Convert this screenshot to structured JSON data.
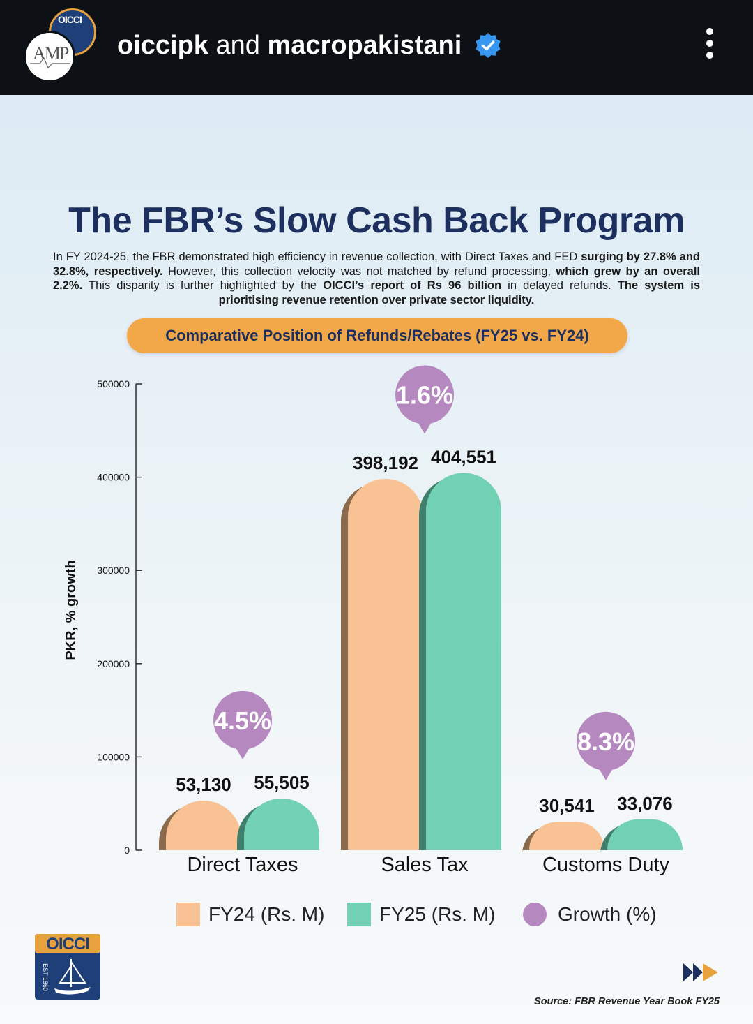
{
  "header": {
    "account_primary": "oiccipk",
    "account_joiner": "and",
    "account_secondary": "macropakistani",
    "avatar_back_text": "OICCI",
    "avatar_front_text": "AMP"
  },
  "infographic": {
    "title": "The FBR’s Slow Cash Back Program",
    "intro": [
      {
        "text": "In FY 2024-25, the FBR demonstrated high efficiency in revenue collection, with Direct Taxes and FED ",
        "bold": false
      },
      {
        "text": "surging by 27.8% and 32.8%, respectively.",
        "bold": true
      },
      {
        "text": " However, this collection velocity was not matched by refund processing, ",
        "bold": false
      },
      {
        "text": "which grew by an overall 2.2%.",
        "bold": true
      },
      {
        "text": " This disparity is further highlighted by the ",
        "bold": false
      },
      {
        "text": "OICCI’s report of Rs 96 billion",
        "bold": true
      },
      {
        "text": " in delayed refunds. ",
        "bold": false
      },
      {
        "text": "The system is prioritising revenue retention over private sector liquidity.",
        "bold": true
      }
    ],
    "subtitle": "Comparative Position of Refunds/Rebates (FY25 vs. FY24)",
    "source": "Source: FBR Revenue Year Book FY25",
    "logo_text": "OICCI",
    "logo_est": "EST 1860"
  },
  "colors": {
    "fy24": "#f8c294",
    "fy24_dark": "#8a6a4c",
    "fy25": "#72d1b3",
    "fy25_dark": "#3f7f6c",
    "growth": "#b688c0",
    "title": "#1d2f5e",
    "pill": "#f2a848"
  },
  "chart_data": {
    "type": "bar",
    "title": "Comparative Position of Refunds/Rebates (FY25 vs. FY24)",
    "ylabel": "PKR, % growth",
    "xlabel": "",
    "ylim": [
      0,
      500000
    ],
    "yticks": [
      0,
      100000,
      200000,
      300000,
      400000,
      500000
    ],
    "categories": [
      "Direct Taxes",
      "Sales Tax",
      "Customs Duty"
    ],
    "series": [
      {
        "name": "FY24 (Rs. M)",
        "values": [
          53130,
          398192,
          30541
        ],
        "labels": [
          "53,130",
          "398,192",
          "30,541"
        ]
      },
      {
        "name": "FY25 (Rs. M)",
        "values": [
          55505,
          404551,
          33076
        ],
        "labels": [
          "55,505",
          "404,551",
          "33,076"
        ]
      }
    ],
    "growth": {
      "name": "Growth (%)",
      "values": [
        4.5,
        1.6,
        8.3
      ],
      "labels": [
        "4.5%",
        "1.6%",
        "8.3%"
      ]
    },
    "legend": [
      "FY24 (Rs. M)",
      "FY25 (Rs. M)",
      "Growth (%)"
    ],
    "legend_position": "bottom"
  }
}
